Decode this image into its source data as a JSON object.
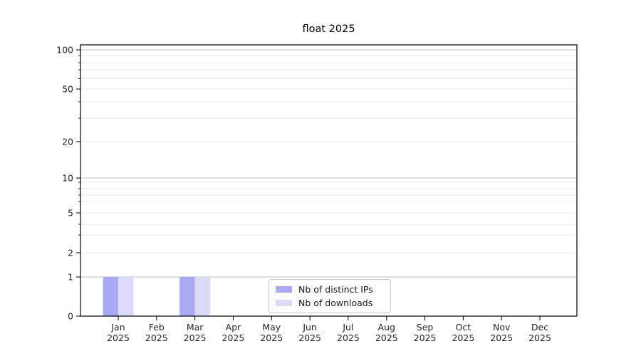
{
  "chart_data": {
    "type": "bar",
    "title": "float 2025",
    "categories": [
      "Jan",
      "Feb",
      "Mar",
      "Apr",
      "May",
      "Jun",
      "Jul",
      "Aug",
      "Sep",
      "Oct",
      "Nov",
      "Dec"
    ],
    "category_year": "2025",
    "series": [
      {
        "name": "Nb of distinct IPs",
        "color": "#a9a9f6",
        "values": [
          1,
          0,
          1,
          0,
          0,
          0,
          0,
          0,
          0,
          0,
          0,
          0
        ]
      },
      {
        "name": "Nb of downloads",
        "color": "#dbdbf9",
        "values": [
          1,
          0,
          1,
          0,
          0,
          0,
          0,
          0,
          0,
          0,
          0,
          0
        ]
      }
    ],
    "y_axis": {
      "scale": "log-like",
      "ticks": [
        {
          "value": 0,
          "f": 0.0
        },
        {
          "value": 1,
          "f": 0.1444
        },
        {
          "value": 2,
          "f": 0.2336
        },
        {
          "value": 5,
          "f": 0.3806
        },
        {
          "value": 10,
          "f": 0.5091
        },
        {
          "value": 20,
          "f": 0.643
        },
        {
          "value": 50,
          "f": 0.8373
        },
        {
          "value": 100,
          "f": 0.9816
        }
      ],
      "major_grid_values": [
        1,
        10,
        100
      ],
      "minor_ticks": [
        {
          "value": 3,
          "f": 0.2992
        },
        {
          "value": 4,
          "f": 0.3386
        },
        {
          "value": 6,
          "f": 0.4226
        },
        {
          "value": 7,
          "f": 0.4462
        },
        {
          "value": 8,
          "f": 0.4698
        },
        {
          "value": 9,
          "f": 0.4934
        },
        {
          "value": 30,
          "f": 0.7297
        },
        {
          "value": 40,
          "f": 0.79
        },
        {
          "value": 60,
          "f": 0.8753
        },
        {
          "value": 70,
          "f": 0.9081
        },
        {
          "value": 80,
          "f": 0.9344
        },
        {
          "value": 90,
          "f": 0.9606
        }
      ]
    },
    "grid": {
      "major_color": "#bfbfbf",
      "minor_color": "#eaeaea",
      "on": true
    },
    "axis_color": "#000000",
    "label_color": "#262626",
    "legend": {
      "position": "bottom-center-inside"
    }
  }
}
